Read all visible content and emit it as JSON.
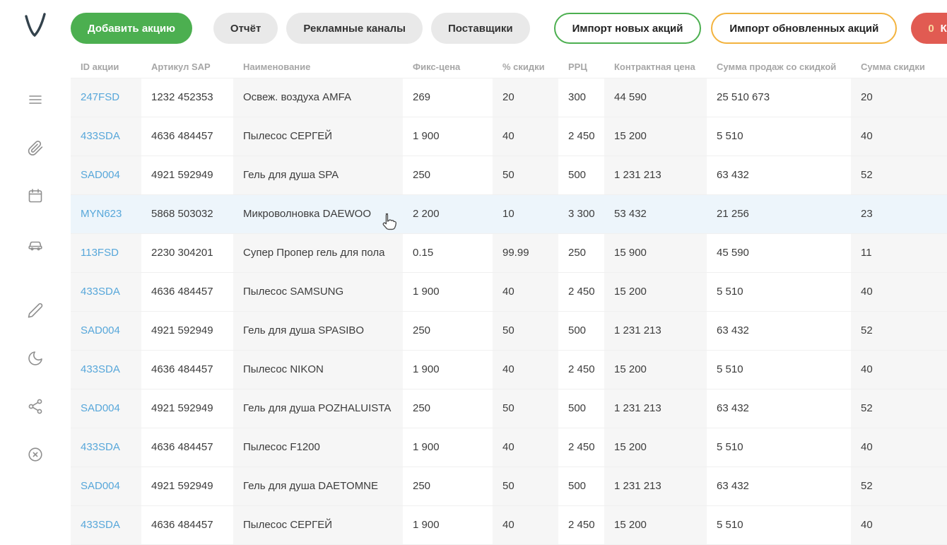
{
  "toolbar": {
    "add_promo": "Добавить акцию",
    "report": "Отчёт",
    "ad_channels": "Рекламные каналы",
    "suppliers": "Поставщики",
    "import_new": "Импорт новых акций",
    "import_updated": "Импорт обновленных акций",
    "conflicts_count": "0",
    "conflicts": "Конфликты"
  },
  "sidebar": {
    "icons": [
      "menu-icon",
      "paperclip-icon",
      "calendar-icon",
      "car-icon",
      "pencil-icon",
      "moon-icon",
      "share-icon",
      "close-circle-icon"
    ]
  },
  "table": {
    "columns": [
      "ID акции",
      "Артикул SAP",
      "Наименование",
      "Фикс-цена",
      "% скидки",
      "РРЦ",
      "Контрактная цена",
      "Сумма продаж со скидкой",
      "Сумма скидки"
    ],
    "rows": [
      [
        "247FSD",
        "1232 452353",
        "Освеж. воздуха AMFA",
        "269",
        "20",
        "300",
        "44 590",
        "25 510 673",
        "20"
      ],
      [
        "433SDA",
        "4636 484457",
        "Пылесос СЕРГЕЙ",
        "1 900",
        "40",
        "2 450",
        "15 200",
        "5 510",
        "40"
      ],
      [
        "SAD004",
        "4921 592949",
        "Гель для душа SPA",
        "250",
        "50",
        "500",
        "1 231 213",
        "63 432",
        "52"
      ],
      [
        "MYN623",
        "5868 503032",
        "Микроволновка DAEWOO",
        "2 200",
        "10",
        "3 300",
        "53 432",
        "21 256",
        "23"
      ],
      [
        "113FSD",
        "2230 304201",
        "Супер Пропер гель для пола",
        "0.15",
        "99.99",
        "250",
        "15 900",
        "45 590",
        "11"
      ],
      [
        "433SDA",
        "4636 484457",
        "Пылесос SAMSUNG",
        "1 900",
        "40",
        "2 450",
        "15 200",
        "5 510",
        "40"
      ],
      [
        "SAD004",
        "4921 592949",
        "Гель для душа SPASIBO",
        "250",
        "50",
        "500",
        "1 231 213",
        "63 432",
        "52"
      ],
      [
        "433SDA",
        "4636 484457",
        "Пылесос NIKON",
        "1 900",
        "40",
        "2 450",
        "15 200",
        "5 510",
        "40"
      ],
      [
        "SAD004",
        "4921 592949",
        "Гель для душа POZHALUISTA",
        "250",
        "50",
        "500",
        "1 231 213",
        "63 432",
        "52"
      ],
      [
        "433SDA",
        "4636 484457",
        "Пылесос F1200",
        "1 900",
        "40",
        "2 450",
        "15 200",
        "5 510",
        "40"
      ],
      [
        "SAD004",
        "4921 592949",
        "Гель для душа DAETOMNE",
        "250",
        "50",
        "500",
        "1 231 213",
        "63 432",
        "52"
      ],
      [
        "433SDA",
        "4636 484457",
        "Пылесос СЕРГЕЙ",
        "1 900",
        "40",
        "2 450",
        "15 200",
        "5 510",
        "40"
      ]
    ],
    "hover_row_index": 3
  },
  "colors": {
    "accent_green": "#4CAF50",
    "accent_yellow": "#F3B33E",
    "accent_red": "#E15B52",
    "link_blue": "#57A7DA",
    "column_shade": "#F6F6F6",
    "hover_row": "#EDF5FB"
  }
}
